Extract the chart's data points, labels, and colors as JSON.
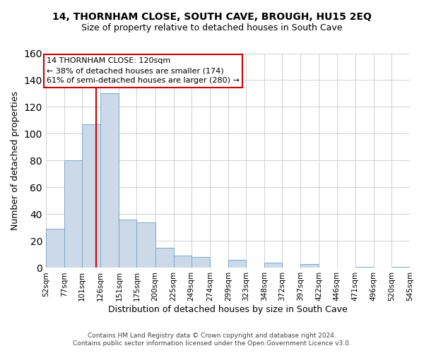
{
  "title": "14, THORNHAM CLOSE, SOUTH CAVE, BROUGH, HU15 2EQ",
  "subtitle": "Size of property relative to detached houses in South Cave",
  "xlabel": "Distribution of detached houses by size in South Cave",
  "ylabel": "Number of detached properties",
  "bar_color": "#ccd9e8",
  "bar_edge_color": "#7aaac8",
  "grid_color": "#d0d0d0",
  "vline_x": 120,
  "vline_color": "#cc0000",
  "annotation_title": "14 THORNHAM CLOSE: 120sqm",
  "annotation_line1": "← 38% of detached houses are smaller (174)",
  "annotation_line2": "61% of semi-detached houses are larger (280) →",
  "bin_edges": [
    52,
    77,
    101,
    126,
    151,
    175,
    200,
    225,
    249,
    274,
    299,
    323,
    348,
    372,
    397,
    422,
    446,
    471,
    496,
    520,
    545
  ],
  "bin_counts": [
    29,
    80,
    107,
    130,
    36,
    34,
    15,
    9,
    8,
    0,
    6,
    0,
    4,
    0,
    3,
    0,
    0,
    1,
    0,
    1
  ],
  "ylim": [
    0,
    160
  ],
  "yticks": [
    0,
    20,
    40,
    60,
    80,
    100,
    120,
    140,
    160
  ],
  "footer_line1": "Contains HM Land Registry data © Crown copyright and database right 2024.",
  "footer_line2": "Contains public sector information licensed under the Open Government Licence v3.0."
}
